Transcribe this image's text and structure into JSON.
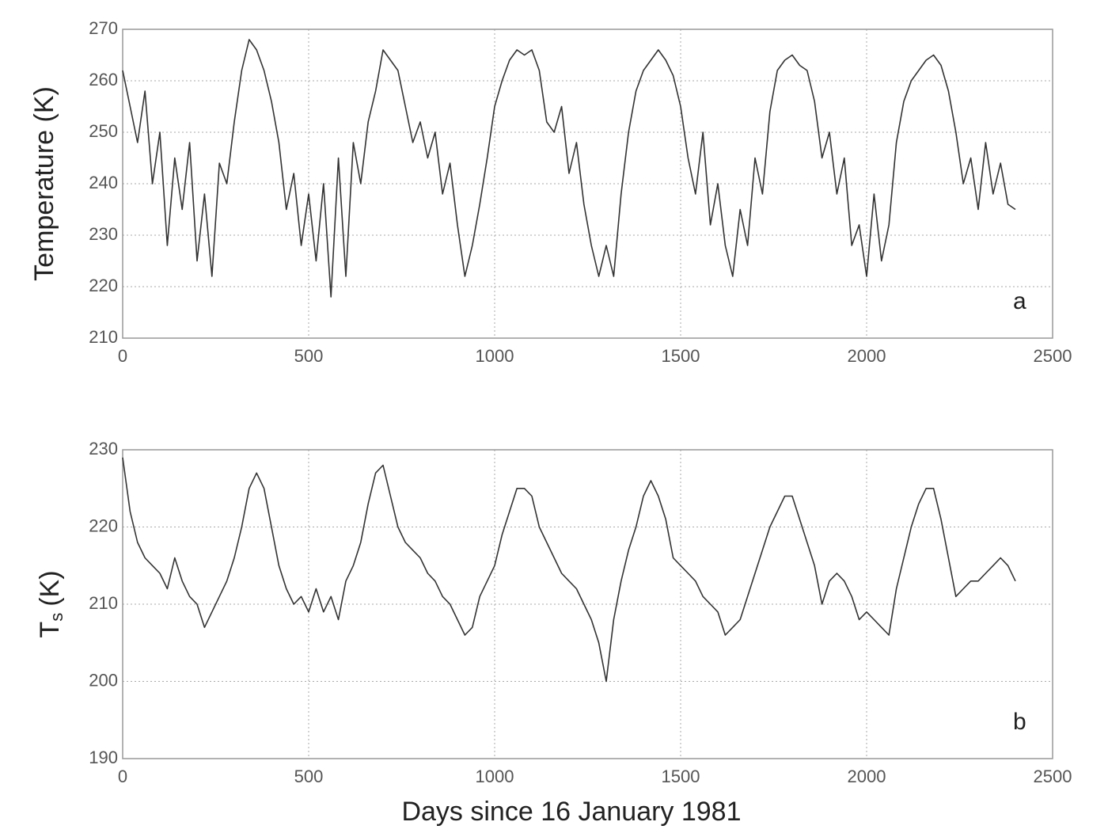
{
  "chart_data": [
    {
      "type": "line",
      "ylabel": "Temperature (K)",
      "annotation": "a",
      "grid": true,
      "color": "#333333",
      "xlim": [
        0,
        2500
      ],
      "xticks": [
        0,
        500,
        1000,
        1500,
        2000,
        2500
      ],
      "ylim": [
        210,
        270
      ],
      "yticks": [
        210,
        220,
        230,
        240,
        250,
        260,
        270
      ],
      "x": [
        0,
        20,
        40,
        60,
        80,
        100,
        120,
        140,
        160,
        180,
        200,
        220,
        240,
        260,
        280,
        300,
        320,
        340,
        360,
        380,
        400,
        420,
        440,
        460,
        480,
        500,
        520,
        540,
        560,
        580,
        600,
        620,
        640,
        660,
        680,
        700,
        720,
        740,
        760,
        780,
        800,
        820,
        840,
        860,
        880,
        900,
        920,
        940,
        960,
        980,
        1000,
        1020,
        1040,
        1060,
        1080,
        1100,
        1120,
        1140,
        1160,
        1180,
        1200,
        1220,
        1240,
        1260,
        1280,
        1300,
        1320,
        1340,
        1360,
        1380,
        1400,
        1420,
        1440,
        1460,
        1480,
        1500,
        1520,
        1540,
        1560,
        1580,
        1600,
        1620,
        1640,
        1660,
        1680,
        1700,
        1720,
        1740,
        1760,
        1780,
        1800,
        1820,
        1840,
        1860,
        1880,
        1900,
        1920,
        1940,
        1960,
        1980,
        2000,
        2020,
        2040,
        2060,
        2080,
        2100,
        2120,
        2140,
        2160,
        2180,
        2200,
        2220,
        2240,
        2260,
        2280,
        2300,
        2320,
        2340,
        2360,
        2380,
        2400
      ],
      "values": [
        262,
        255,
        248,
        258,
        240,
        250,
        228,
        245,
        235,
        248,
        225,
        238,
        222,
        244,
        240,
        252,
        262,
        268,
        266,
        262,
        256,
        248,
        235,
        242,
        228,
        238,
        225,
        240,
        218,
        245,
        222,
        248,
        240,
        252,
        258,
        266,
        264,
        262,
        255,
        248,
        252,
        245,
        250,
        238,
        244,
        232,
        222,
        228,
        236,
        245,
        255,
        260,
        264,
        266,
        265,
        266,
        262,
        252,
        250,
        255,
        242,
        248,
        236,
        228,
        222,
        228,
        222,
        238,
        250,
        258,
        262,
        264,
        266,
        264,
        261,
        255,
        245,
        238,
        250,
        232,
        240,
        228,
        222,
        235,
        228,
        245,
        238,
        254,
        262,
        264,
        265,
        263,
        262,
        256,
        245,
        250,
        238,
        245,
        228,
        232,
        222,
        238,
        225,
        232,
        248,
        256,
        260,
        262,
        264,
        265,
        263,
        258,
        250,
        240,
        245,
        235,
        248,
        238,
        244,
        236,
        235
      ]
    },
    {
      "type": "line",
      "ylabel": "T",
      "ylabel_subscript": "s",
      "ylabel_unit": "(K)",
      "annotation": "b",
      "xlabel": "Days since 16 January 1981",
      "grid": true,
      "color": "#333333",
      "xlim": [
        0,
        2500
      ],
      "xticks": [
        0,
        500,
        1000,
        1500,
        2000,
        2500
      ],
      "ylim": [
        190,
        230
      ],
      "yticks": [
        190,
        200,
        210,
        220,
        230
      ],
      "x": [
        0,
        20,
        40,
        60,
        80,
        100,
        120,
        140,
        160,
        180,
        200,
        220,
        240,
        260,
        280,
        300,
        320,
        340,
        360,
        380,
        400,
        420,
        440,
        460,
        480,
        500,
        520,
        540,
        560,
        580,
        600,
        620,
        640,
        660,
        680,
        700,
        720,
        740,
        760,
        780,
        800,
        820,
        840,
        860,
        880,
        900,
        920,
        940,
        960,
        980,
        1000,
        1020,
        1040,
        1060,
        1080,
        1100,
        1120,
        1140,
        1160,
        1180,
        1200,
        1220,
        1240,
        1260,
        1280,
        1300,
        1320,
        1340,
        1360,
        1380,
        1400,
        1420,
        1440,
        1460,
        1480,
        1500,
        1520,
        1540,
        1560,
        1580,
        1600,
        1620,
        1640,
        1660,
        1680,
        1700,
        1720,
        1740,
        1760,
        1780,
        1800,
        1820,
        1840,
        1860,
        1880,
        1900,
        1920,
        1940,
        1960,
        1980,
        2000,
        2020,
        2040,
        2060,
        2080,
        2100,
        2120,
        2140,
        2160,
        2180,
        2200,
        2220,
        2240,
        2260,
        2280,
        2300,
        2320,
        2340,
        2360,
        2380,
        2400
      ],
      "values": [
        229,
        222,
        218,
        216,
        215,
        214,
        212,
        216,
        213,
        211,
        210,
        207,
        209,
        211,
        213,
        216,
        220,
        225,
        227,
        225,
        220,
        215,
        212,
        210,
        211,
        209,
        212,
        209,
        211,
        208,
        213,
        215,
        218,
        223,
        227,
        228,
        224,
        220,
        218,
        217,
        216,
        214,
        213,
        211,
        210,
        208,
        206,
        207,
        211,
        213,
        215,
        219,
        222,
        225,
        225,
        224,
        220,
        218,
        216,
        214,
        213,
        212,
        210,
        208,
        205,
        200,
        208,
        213,
        217,
        220,
        224,
        226,
        224,
        221,
        216,
        215,
        214,
        213,
        211,
        210,
        209,
        206,
        207,
        208,
        211,
        214,
        217,
        220,
        222,
        224,
        224,
        221,
        218,
        215,
        210,
        213,
        214,
        213,
        211,
        208,
        209,
        208,
        207,
        206,
        212,
        216,
        220,
        223,
        225,
        225,
        221,
        216,
        211,
        212,
        213,
        213,
        214,
        215,
        216,
        215,
        213
      ]
    }
  ]
}
